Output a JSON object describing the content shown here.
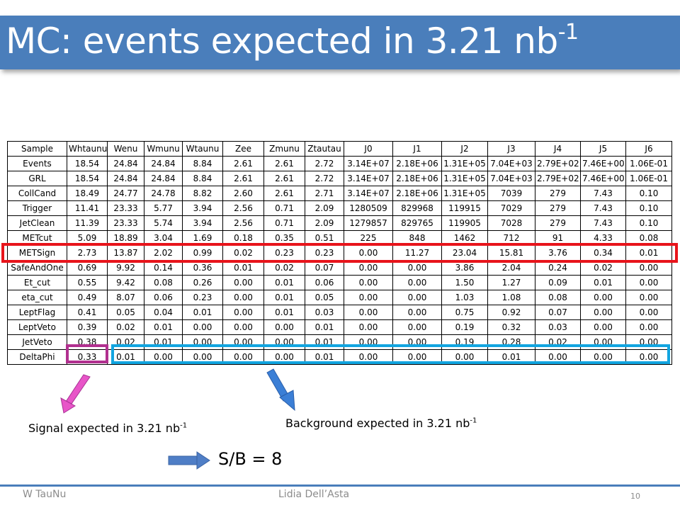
{
  "title": {
    "main": "MC: events expected in 3.21 nb",
    "sup": "-1"
  },
  "table": {
    "header": [
      "Sample",
      "Whtaunu",
      "Wenu",
      "Wmunu",
      "Wtaunu",
      "Zee",
      "Zmunu",
      "Ztautau",
      "J0",
      "J1",
      "J2",
      "J3",
      "J4",
      "J5",
      "J6"
    ],
    "rows": [
      [
        "Events",
        "18.54",
        "24.84",
        "24.84",
        "8.84",
        "2.61",
        "2.61",
        "2.72",
        "3.14E+07",
        "2.18E+06",
        "1.31E+05",
        "7.04E+03",
        "2.79E+02",
        "7.46E+00",
        "1.06E-01"
      ],
      [
        "GRL",
        "18.54",
        "24.84",
        "24.84",
        "8.84",
        "2.61",
        "2.61",
        "2.72",
        "3.14E+07",
        "2.18E+06",
        "1.31E+05",
        "7.04E+03",
        "2.79E+02",
        "7.46E+00",
        "1.06E-01"
      ],
      [
        "CollCand",
        "18.49",
        "24.77",
        "24.78",
        "8.82",
        "2.60",
        "2.61",
        "2.71",
        "3.14E+07",
        "2.18E+06",
        "1.31E+05",
        "7039",
        "279",
        "7.43",
        "0.10"
      ],
      [
        "Trigger",
        "11.41",
        "23.33",
        "5.77",
        "3.94",
        "2.56",
        "0.71",
        "2.09",
        "1280509",
        "829968",
        "119915",
        "7029",
        "279",
        "7.43",
        "0.10"
      ],
      [
        "JetClean",
        "11.39",
        "23.33",
        "5.74",
        "3.94",
        "2.56",
        "0.71",
        "2.09",
        "1279857",
        "829765",
        "119905",
        "7028",
        "279",
        "7.43",
        "0.10"
      ],
      [
        "METcut",
        "5.09",
        "18.89",
        "3.04",
        "1.69",
        "0.18",
        "0.35",
        "0.51",
        "225",
        "848",
        "1462",
        "712",
        "91",
        "4.33",
        "0.08"
      ],
      [
        "METSign",
        "2.73",
        "13.87",
        "2.02",
        "0.99",
        "0.02",
        "0.23",
        "0.23",
        "0.00",
        "11.27",
        "23.04",
        "15.81",
        "3.76",
        "0.34",
        "0.01"
      ],
      [
        "SafeAndOne",
        "0.69",
        "9.92",
        "0.14",
        "0.36",
        "0.01",
        "0.02",
        "0.07",
        "0.00",
        "0.00",
        "3.86",
        "2.04",
        "0.24",
        "0.02",
        "0.00"
      ],
      [
        "Et_cut",
        "0.55",
        "9.42",
        "0.08",
        "0.26",
        "0.00",
        "0.01",
        "0.06",
        "0.00",
        "0.00",
        "1.50",
        "1.27",
        "0.09",
        "0.01",
        "0.00"
      ],
      [
        "eta_cut",
        "0.49",
        "8.07",
        "0.06",
        "0.23",
        "0.00",
        "0.01",
        "0.05",
        "0.00",
        "0.00",
        "1.03",
        "1.08",
        "0.08",
        "0.00",
        "0.00"
      ],
      [
        "LeptFlag",
        "0.41",
        "0.05",
        "0.04",
        "0.01",
        "0.00",
        "0.01",
        "0.03",
        "0.00",
        "0.00",
        "0.75",
        "0.92",
        "0.07",
        "0.00",
        "0.00"
      ],
      [
        "LeptVeto",
        "0.39",
        "0.02",
        "0.01",
        "0.00",
        "0.00",
        "0.00",
        "0.01",
        "0.00",
        "0.00",
        "0.19",
        "0.32",
        "0.03",
        "0.00",
        "0.00"
      ],
      [
        "JetVeto",
        "0.38",
        "0.02",
        "0.01",
        "0.00",
        "0.00",
        "0.00",
        "0.01",
        "0.00",
        "0.00",
        "0.19",
        "0.28",
        "0.02",
        "0.00",
        "0.00"
      ],
      [
        "DeltaPhi",
        "0.33",
        "0.01",
        "0.00",
        "0.00",
        "0.00",
        "0.00",
        "0.01",
        "0.00",
        "0.00",
        "0.00",
        "0.01",
        "0.00",
        "0.00",
        "0.00"
      ]
    ]
  },
  "annotations": {
    "signal": {
      "text": "Signal expected in 3.21 nb",
      "sup": "-1"
    },
    "background": {
      "text": "Background expected in 3.21 nb",
      "sup": "-1"
    },
    "ratio": "S/B = 8"
  },
  "colors": {
    "title_bar": "#4a7ebb",
    "highlight_row": "#e8141b",
    "signal_box": "#b1308f",
    "background_box": "#12a5e0",
    "signal_arrow": "#e855c8",
    "background_arrow": "#3b7fd6",
    "ratio_arrow": "#4f7ec6"
  },
  "footer": {
    "left": "W TauNu",
    "center": "Lidia Dell’Asta",
    "page": "10"
  }
}
